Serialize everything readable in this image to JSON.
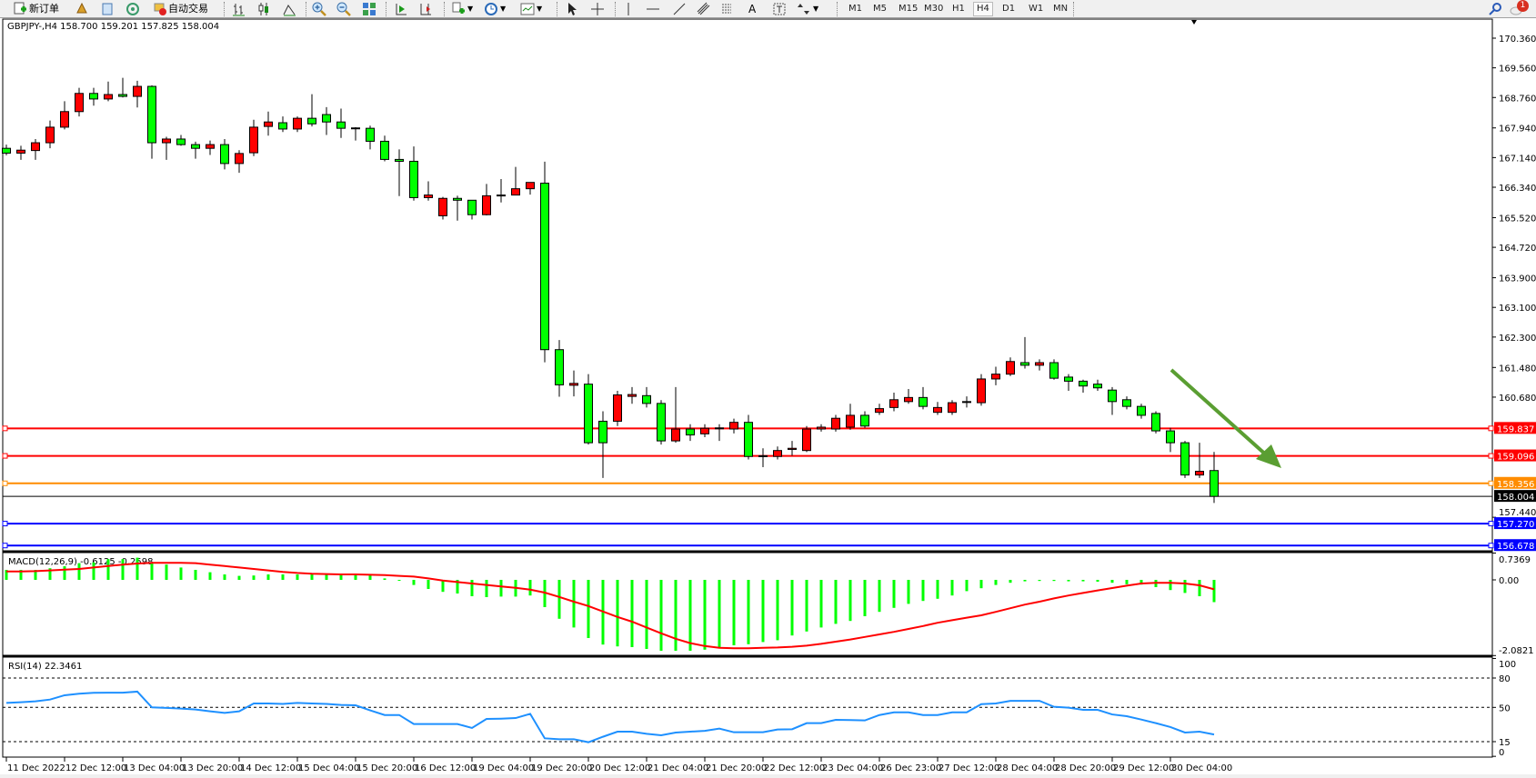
{
  "toolbar": {
    "new_order_label": "新订单",
    "auto_trade_label": "自动交易",
    "icons": [
      "new-order-icon",
      "gold-icon",
      "market-watch-icon",
      "signals-icon",
      "auto-trade-icon",
      "bar-chart-icon",
      "candlestick-icon",
      "line-chart-icon",
      "zoom-in-icon",
      "zoom-out-icon",
      "tile-windows-icon",
      "auto-scroll-icon",
      "chart-shift-icon",
      "indicators-icon",
      "periods-icon",
      "templates-icon",
      "cursor-icon",
      "crosshair-icon",
      "vertical-line-icon",
      "horizontal-line-icon",
      "trendline-icon",
      "channel-icon",
      "fibonacci-icon",
      "text-icon",
      "text-label-icon",
      "arrows-icon"
    ],
    "timeframes": [
      "M1",
      "M5",
      "M15",
      "M30",
      "H1",
      "H4",
      "D1",
      "W1",
      "MN"
    ],
    "active_timeframe": "H4",
    "notification_count": "1"
  },
  "chart_title": "GBPJPY-,H4  158.700 159.201 157.825 158.004",
  "colors": {
    "bull": "#ff0000",
    "bear": "#00ff00",
    "macd_hist": "#00ff00",
    "macd_signal": "#ff0000",
    "rsi": "#1e90ff",
    "resistance": "#ff0000",
    "pivot": "#ff8c00",
    "support": "#0000ff",
    "arrow": "#5a9e32"
  },
  "chart_data": [
    {
      "type": "candlestick",
      "symbol": "GBPJPY-",
      "timeframe": "H4",
      "ylim": [
        156.6,
        170.9
      ],
      "y_ticks": [
        "170.360",
        "169.560",
        "168.760",
        "167.940",
        "167.140",
        "166.340",
        "165.520",
        "164.720",
        "163.900",
        "163.100",
        "162.300",
        "161.480",
        "160.680",
        "157.440"
      ],
      "x_tick_labels": [
        "11 Dec 2022",
        "12 Dec 12:00",
        "13 Dec 04:00",
        "13 Dec 20:00",
        "14 Dec 12:00",
        "15 Dec 04:00",
        "15 Dec 20:00",
        "16 Dec 12:00",
        "19 Dec 04:00",
        "19 Dec 20:00",
        "20 Dec 12:00",
        "21 Dec 04:00",
        "21 Dec 20:00",
        "22 Dec 12:00",
        "23 Dec 04:00",
        "26 Dec 23:00",
        "27 Dec 12:00",
        "28 Dec 04:00",
        "28 Dec 20:00",
        "29 Dec 12:00",
        "30 Dec 04:00"
      ],
      "ohlc": [
        [
          167.39,
          167.49,
          167.2,
          167.26
        ],
        [
          167.26,
          167.46,
          167.08,
          167.34
        ],
        [
          167.33,
          167.64,
          167.08,
          167.54
        ],
        [
          167.54,
          168.14,
          167.39,
          167.96
        ],
        [
          167.96,
          168.66,
          167.9,
          168.38
        ],
        [
          168.38,
          169.02,
          168.25,
          168.87
        ],
        [
          168.87,
          169.02,
          168.54,
          168.72
        ],
        [
          168.72,
          169.19,
          168.66,
          168.84
        ],
        [
          168.84,
          169.29,
          168.76,
          168.79
        ],
        [
          168.79,
          169.21,
          168.49,
          169.06
        ],
        [
          169.06,
          169.09,
          167.11,
          167.54
        ],
        [
          167.54,
          167.7,
          167.08,
          167.64
        ],
        [
          167.64,
          167.75,
          167.46,
          167.49
        ],
        [
          167.49,
          167.57,
          167.11,
          167.39
        ],
        [
          167.39,
          167.6,
          167.21,
          167.49
        ],
        [
          167.49,
          167.64,
          166.82,
          166.98
        ],
        [
          166.98,
          167.34,
          166.73,
          167.25
        ],
        [
          167.27,
          168.16,
          167.18,
          167.96
        ],
        [
          167.98,
          168.38,
          167.73,
          168.1
        ],
        [
          168.08,
          168.25,
          167.83,
          167.91
        ],
        [
          167.91,
          168.25,
          167.83,
          168.2
        ],
        [
          168.2,
          168.85,
          167.98,
          168.05
        ],
        [
          168.3,
          168.5,
          167.75,
          168.1
        ],
        [
          168.1,
          168.46,
          167.67,
          167.93
        ],
        [
          167.93,
          167.96,
          167.6,
          167.94
        ],
        [
          167.93,
          168.0,
          167.36,
          167.58
        ],
        [
          167.58,
          167.73,
          167.04,
          167.09
        ],
        [
          167.09,
          167.36,
          166.1,
          167.04
        ],
        [
          167.04,
          167.44,
          165.98,
          166.06
        ],
        [
          166.06,
          166.5,
          165.98,
          166.13
        ],
        [
          165.57,
          166.08,
          165.47,
          166.04
        ],
        [
          166.04,
          166.11,
          165.44,
          165.99
        ],
        [
          165.99,
          165.99,
          165.47,
          165.6
        ],
        [
          165.6,
          166.43,
          165.58,
          166.11
        ],
        [
          166.11,
          166.56,
          165.93,
          166.13
        ],
        [
          166.13,
          166.89,
          166.13,
          166.3
        ],
        [
          166.3,
          166.47,
          166.14,
          166.47
        ],
        [
          166.45,
          167.03,
          161.62,
          161.96
        ],
        [
          161.96,
          162.22,
          160.69,
          161.01
        ],
        [
          161.0,
          161.4,
          160.7,
          161.05
        ],
        [
          161.03,
          161.3,
          159.4,
          159.45
        ],
        [
          160.03,
          160.3,
          158.5,
          159.45
        ],
        [
          160.03,
          160.85,
          159.9,
          160.74
        ],
        [
          160.7,
          160.95,
          160.5,
          160.75
        ],
        [
          160.72,
          160.95,
          160.4,
          160.51
        ],
        [
          160.51,
          160.6,
          159.4,
          159.5
        ],
        [
          159.5,
          160.95,
          159.45,
          159.82
        ],
        [
          159.82,
          159.95,
          159.5,
          159.66
        ],
        [
          159.69,
          159.95,
          159.6,
          159.84
        ],
        [
          159.84,
          159.95,
          159.5,
          159.85
        ],
        [
          159.82,
          160.1,
          159.7,
          160.0
        ],
        [
          160.0,
          160.2,
          159.0,
          159.08
        ],
        [
          159.08,
          159.3,
          158.79,
          159.1
        ],
        [
          159.08,
          159.35,
          159.0,
          159.24
        ],
        [
          159.27,
          159.5,
          159.1,
          159.3
        ],
        [
          159.24,
          159.9,
          159.2,
          159.82
        ],
        [
          159.82,
          159.95,
          159.75,
          159.87
        ],
        [
          159.82,
          160.2,
          159.75,
          160.11
        ],
        [
          159.87,
          160.5,
          159.8,
          160.19
        ],
        [
          160.19,
          160.3,
          159.85,
          159.9
        ],
        [
          160.27,
          160.5,
          160.2,
          160.37
        ],
        [
          160.4,
          160.8,
          160.3,
          160.61
        ],
        [
          160.56,
          160.9,
          160.5,
          160.67
        ],
        [
          160.67,
          160.95,
          160.35,
          160.43
        ],
        [
          160.27,
          160.55,
          160.2,
          160.4
        ],
        [
          160.27,
          160.6,
          160.2,
          160.53
        ],
        [
          160.55,
          160.7,
          160.4,
          160.56
        ],
        [
          160.53,
          161.3,
          160.45,
          161.17
        ],
        [
          161.17,
          161.5,
          161.0,
          161.3
        ],
        [
          161.3,
          161.75,
          161.25,
          161.64
        ],
        [
          161.61,
          162.3,
          161.45,
          161.54
        ],
        [
          161.54,
          161.7,
          161.4,
          161.61
        ],
        [
          161.61,
          161.7,
          161.15,
          161.19
        ],
        [
          161.22,
          161.3,
          160.85,
          161.11
        ],
        [
          161.11,
          161.15,
          160.8,
          160.98
        ],
        [
          161.03,
          161.15,
          160.85,
          160.93
        ],
        [
          160.87,
          160.95,
          160.2,
          160.56
        ],
        [
          160.61,
          160.7,
          160.35,
          160.43
        ],
        [
          160.43,
          160.5,
          160.1,
          160.19
        ],
        [
          160.24,
          160.3,
          159.7,
          159.77
        ],
        [
          159.77,
          159.85,
          159.2,
          159.45
        ],
        [
          159.45,
          159.5,
          158.5,
          158.58
        ],
        [
          158.58,
          159.45,
          158.5,
          158.68
        ],
        [
          158.7,
          159.201,
          157.825,
          158.004
        ]
      ],
      "current_price": "158.004",
      "horizontal_lines": [
        {
          "value": "159.837",
          "color": "#ff0000"
        },
        {
          "value": "159.096",
          "color": "#ff0000"
        },
        {
          "value": "158.356",
          "color": "#ff8c00"
        },
        {
          "value": "157.270",
          "color": "#0000ff"
        },
        {
          "value": "156.678",
          "color": "#0000ff"
        }
      ],
      "annotations": [
        {
          "type": "arrow",
          "direction": "down-right",
          "color": "#5a9e32"
        }
      ]
    },
    {
      "type": "bar+line",
      "title": "MACD(12,26,9) -0.6125 -0.2598",
      "ylim": [
        -2.0821,
        0.7369
      ],
      "y_ticks": [
        "0.7369",
        "0.00",
        "-2.0821"
      ],
      "histogram": [
        0.275,
        0.275,
        0.275,
        0.32,
        0.375,
        0.46,
        0.48,
        0.57,
        0.57,
        0.61,
        0.48,
        0.42,
        0.34,
        0.275,
        0.21,
        0.15,
        0.11,
        0.12,
        0.15,
        0.15,
        0.15,
        0.15,
        0.15,
        0.13,
        0.13,
        0.13,
        0.04,
        -0.02,
        -0.14,
        -0.25,
        -0.33,
        -0.375,
        -0.45,
        -0.475,
        -0.46,
        -0.46,
        -0.43,
        -0.75,
        -1.07,
        -1.31,
        -1.6,
        -1.78,
        -1.83,
        -1.85,
        -1.9,
        -1.95,
        -1.95,
        -1.95,
        -1.92,
        -1.87,
        -1.8,
        -1.77,
        -1.71,
        -1.66,
        -1.53,
        -1.42,
        -1.31,
        -1.21,
        -1.13,
        -1.0,
        -0.88,
        -0.77,
        -0.66,
        -0.58,
        -0.52,
        -0.43,
        -0.31,
        -0.23,
        -0.14,
        -0.08,
        -0.04,
        -0.03,
        -0.03,
        -0.04,
        -0.04,
        -0.05,
        -0.08,
        -0.12,
        -0.13,
        -0.2,
        -0.28,
        -0.36,
        -0.45,
        -0.6125
      ],
      "signal": [
        0.23,
        0.23,
        0.24,
        0.26,
        0.28,
        0.3,
        0.34,
        0.38,
        0.42,
        0.45,
        0.47,
        0.47,
        0.47,
        0.46,
        0.42,
        0.38,
        0.34,
        0.3,
        0.26,
        0.22,
        0.19,
        0.17,
        0.16,
        0.15,
        0.15,
        0.14,
        0.13,
        0.11,
        0.09,
        0.04,
        -0.02,
        -0.06,
        -0.1,
        -0.14,
        -0.18,
        -0.22,
        -0.27,
        -0.35,
        -0.47,
        -0.6,
        -0.72,
        -0.87,
        -1.02,
        -1.15,
        -1.31,
        -1.47,
        -1.62,
        -1.74,
        -1.82,
        -1.87,
        -1.88,
        -1.88,
        -1.87,
        -1.86,
        -1.84,
        -1.81,
        -1.76,
        -1.7,
        -1.64,
        -1.57,
        -1.5,
        -1.43,
        -1.35,
        -1.27,
        -1.18,
        -1.11,
        -1.04,
        -0.975,
        -0.88,
        -0.78,
        -0.68,
        -0.6,
        -0.51,
        -0.43,
        -0.36,
        -0.29,
        -0.225,
        -0.16,
        -0.1,
        -0.08,
        -0.08,
        -0.1,
        -0.15,
        -0.2598
      ]
    },
    {
      "type": "line",
      "title": "RSI(14) 22.3461",
      "ylim": [
        0,
        100
      ],
      "y_ticks": [
        "100",
        "80",
        "50",
        "15",
        "0"
      ],
      "levels": [
        80,
        50,
        15
      ],
      "values": [
        54.6,
        55.3,
        56.2,
        58,
        62.4,
        64,
        64.9,
        65,
        65,
        66.1,
        50,
        49.5,
        48.8,
        47.8,
        46,
        44.4,
        46,
        54,
        54,
        53.5,
        54.6,
        54,
        53.5,
        52.5,
        52.1,
        47,
        42.2,
        42.2,
        33,
        33,
        33,
        33,
        29,
        38.2,
        38.5,
        39.1,
        43.4,
        18.4,
        17.5,
        17.5,
        14.4,
        20,
        25.2,
        25.2,
        23,
        21.5,
        24.3,
        25.2,
        26,
        28.3,
        24.6,
        24.6,
        24.6,
        27.4,
        27.7,
        33.9,
        33.9,
        37.3,
        37,
        36.7,
        42.2,
        44.9,
        44.9,
        42.2,
        42.2,
        44.9,
        44.9,
        53.3,
        54,
        56.7,
        56.7,
        56.7,
        50.6,
        49.7,
        47.5,
        47.5,
        42.8,
        41,
        37.6,
        33.9,
        29.9,
        24.3,
        25.2,
        22.3461
      ]
    }
  ]
}
